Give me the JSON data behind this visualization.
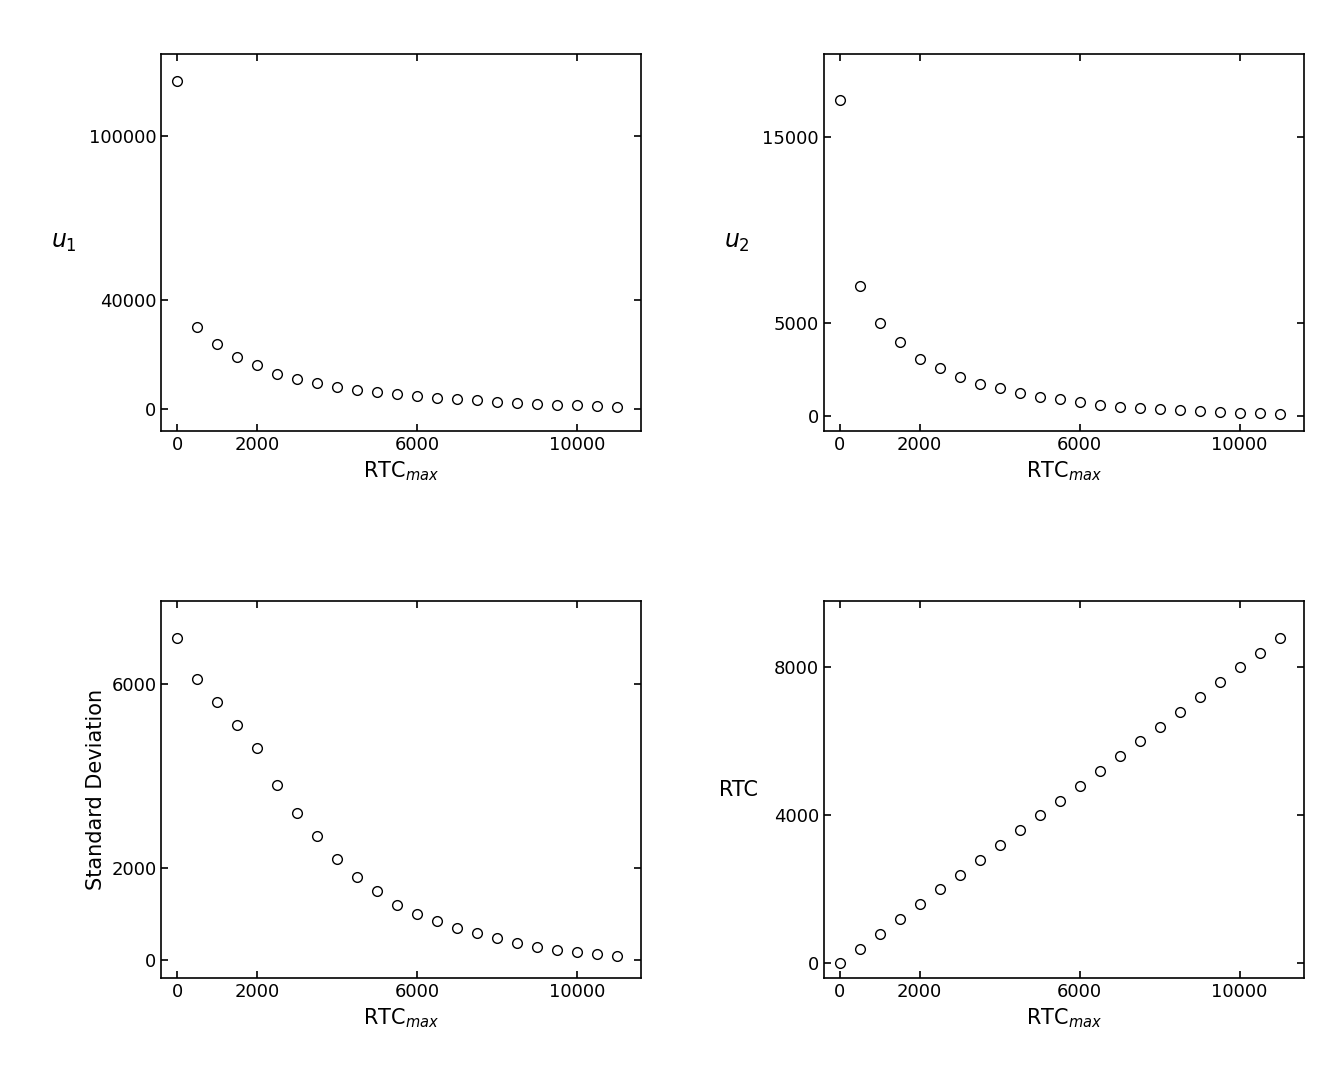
{
  "rtc_max": [
    0,
    500,
    1000,
    1500,
    2000,
    2500,
    3000,
    3500,
    4000,
    4500,
    5000,
    5500,
    6000,
    6500,
    7000,
    7500,
    8000,
    8500,
    9000,
    9500,
    10000,
    10500,
    11000
  ],
  "u1": [
    120000,
    30000,
    24000,
    19000,
    16000,
    13000,
    11000,
    9500,
    8000,
    7000,
    6200,
    5500,
    4800,
    4200,
    3700,
    3200,
    2800,
    2400,
    2000,
    1700,
    1400,
    1100,
    900
  ],
  "u2": [
    17000,
    7000,
    5000,
    4000,
    3100,
    2600,
    2100,
    1750,
    1500,
    1250,
    1050,
    900,
    750,
    620,
    520,
    440,
    380,
    320,
    270,
    230,
    190,
    160,
    130
  ],
  "std_dev": [
    7000,
    6100,
    5600,
    5100,
    4600,
    3800,
    3200,
    2700,
    2200,
    1800,
    1500,
    1200,
    1000,
    850,
    700,
    580,
    470,
    370,
    280,
    220,
    160,
    120,
    80
  ],
  "rtc": [
    0,
    400,
    800,
    1200,
    1600,
    2000,
    2400,
    2800,
    3200,
    3600,
    4000,
    4400,
    4800,
    5200,
    5600,
    6000,
    6400,
    6800,
    7200,
    7600,
    8000,
    8400,
    8800
  ],
  "xlabel_rtcmax": "RTC$_{{max}}$",
  "ylabel_u1": "$u_1$",
  "ylabel_u2": "$u_2$",
  "ylabel_std": "Standard Deviation",
  "ylabel_rtc": "RTC",
  "background_color": "#ffffff",
  "marker": "o",
  "marker_facecolor": "none",
  "marker_edgecolor": "#000000",
  "marker_size": 7,
  "tick_fontsize": 13,
  "label_fontsize": 15,
  "u1_yticks": [
    0,
    40000,
    100000
  ],
  "u2_yticks": [
    0,
    5000,
    15000
  ],
  "std_yticks": [
    0,
    2000,
    6000
  ],
  "rtc_yticks": [
    0,
    4000,
    8000
  ],
  "x_ticks": [
    0,
    2000,
    6000,
    10000
  ]
}
